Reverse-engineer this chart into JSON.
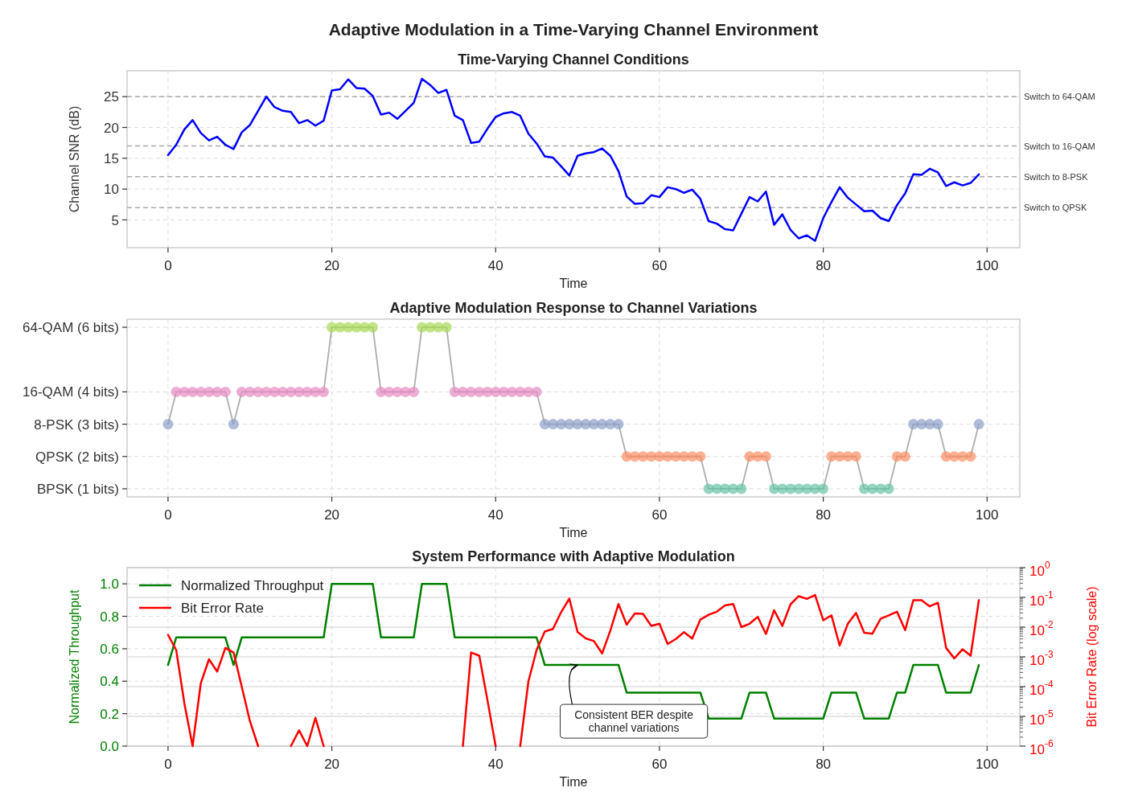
{
  "chart_data": [
    {
      "type": "line",
      "title": "Adaptive Modulation in a Time-Varying Channel Environment",
      "subtitle": "Time-Varying Channel Conditions",
      "xlabel": "Time",
      "ylabel": "Channel SNR (dB)",
      "xlim": [
        -5,
        104
      ],
      "ylim": [
        0.5,
        29.2
      ],
      "xticks": [
        0,
        20,
        40,
        60,
        80,
        100
      ],
      "yticks": [
        5,
        10,
        15,
        20,
        25
      ],
      "grid": true,
      "line_style": "solid",
      "x": [
        0,
        1,
        2,
        3,
        4,
        5,
        6,
        7,
        8,
        9,
        10,
        11,
        12,
        13,
        14,
        15,
        16,
        17,
        18,
        19,
        20,
        21,
        22,
        23,
        24,
        25,
        26,
        27,
        28,
        29,
        30,
        31,
        32,
        33,
        34,
        35,
        36,
        37,
        38,
        39,
        40,
        41,
        42,
        43,
        44,
        45,
        46,
        47,
        48,
        49,
        50,
        51,
        52,
        53,
        54,
        55,
        56,
        57,
        58,
        59,
        60,
        61,
        62,
        63,
        64,
        65,
        66,
        67,
        68,
        69,
        70,
        71,
        72,
        73,
        74,
        75,
        76,
        77,
        78,
        79,
        80,
        81,
        82,
        83,
        84,
        85,
        86,
        87,
        88,
        89,
        90,
        91,
        92,
        93,
        94,
        95,
        96,
        97,
        98,
        99
      ],
      "series": [
        {
          "color": "#0000ff",
          "values": [
            15.5,
            17.2,
            19.7,
            21.2,
            19.1,
            17.9,
            18.5,
            17.2,
            16.5,
            19.2,
            20.4,
            22.7,
            25.0,
            23.3,
            22.7,
            22.5,
            20.7,
            21.2,
            20.3,
            21.1,
            26.0,
            26.2,
            27.8,
            26.4,
            26.3,
            25.1,
            22.1,
            22.4,
            21.4,
            22.7,
            24.0,
            27.9,
            26.9,
            25.6,
            26.1,
            21.9,
            21.2,
            17.5,
            17.7,
            19.8,
            21.7,
            22.3,
            22.5,
            21.9,
            19.0,
            17.4,
            15.3,
            15.1,
            13.7,
            12.2,
            15.4,
            15.8,
            16.0,
            16.6,
            15.4,
            12.9,
            8.8,
            7.6,
            7.7,
            9.0,
            8.7,
            10.3,
            10.0,
            9.4,
            9.9,
            8.4,
            4.8,
            4.4,
            3.5,
            3.3,
            6.0,
            8.7,
            8.0,
            9.6,
            4.2,
            5.9,
            3.4,
            2.0,
            2.5,
            1.6,
            5.3,
            7.9,
            10.3,
            8.6,
            7.5,
            6.4,
            6.5,
            5.3,
            4.8,
            7.4,
            9.3,
            12.4,
            12.3,
            13.3,
            12.7,
            10.5,
            11.1,
            10.6,
            11.0,
            12.4
          ]
        }
      ],
      "ref_lines": [
        {
          "axis": "y",
          "value": 25,
          "label": "Switch to 64-QAM",
          "color": "#aaaaaa",
          "line_style": "dashed"
        },
        {
          "axis": "y",
          "value": 17,
          "label": "Switch to 16-QAM",
          "color": "#aaaaaa",
          "line_style": "dashed"
        },
        {
          "axis": "y",
          "value": 12,
          "label": "Switch to 8-PSK",
          "color": "#aaaaaa",
          "line_style": "dashed"
        },
        {
          "axis": "y",
          "value": 7,
          "label": "Switch to QPSK",
          "color": "#aaaaaa",
          "line_style": "dashed"
        }
      ]
    },
    {
      "type": "line",
      "title": "Adaptive Modulation Response to Channel Variations",
      "xlabel": "Time",
      "xlim": [
        -5,
        104
      ],
      "ylim": [
        0.75,
        6.25
      ],
      "xticks": [
        0,
        20,
        40,
        60,
        80,
        100
      ],
      "yticks": [
        {
          "value": 1,
          "label": "BPSK (1 bits)"
        },
        {
          "value": 2,
          "label": "QPSK (2 bits)"
        },
        {
          "value": 3,
          "label": "8-PSK (3 bits)"
        },
        {
          "value": 4,
          "label": "16-QAM (4 bits)"
        },
        {
          "value": 6,
          "label": "64-QAM (6 bits)"
        }
      ],
      "grid": true,
      "marker": "circle",
      "line_style": "solid",
      "x": [
        0,
        1,
        2,
        3,
        4,
        5,
        6,
        7,
        8,
        9,
        10,
        11,
        12,
        13,
        14,
        15,
        16,
        17,
        18,
        19,
        20,
        21,
        22,
        23,
        24,
        25,
        26,
        27,
        28,
        29,
        30,
        31,
        32,
        33,
        34,
        35,
        36,
        37,
        38,
        39,
        40,
        41,
        42,
        43,
        44,
        45,
        46,
        47,
        48,
        49,
        50,
        51,
        52,
        53,
        54,
        55,
        56,
        57,
        58,
        59,
        60,
        61,
        62,
        63,
        64,
        65,
        66,
        67,
        68,
        69,
        70,
        71,
        72,
        73,
        74,
        75,
        76,
        77,
        78,
        79,
        80,
        81,
        82,
        83,
        84,
        85,
        86,
        87,
        88,
        89,
        90,
        91,
        92,
        93,
        94,
        95,
        96,
        97,
        98,
        99
      ],
      "series": [
        {
          "color": "#999999",
          "values": [
            3,
            4,
            4,
            4,
            4,
            4,
            4,
            4,
            3,
            4,
            4,
            4,
            4,
            4,
            4,
            4,
            4,
            4,
            4,
            4,
            6,
            6,
            6,
            6,
            6,
            6,
            4,
            4,
            4,
            4,
            4,
            6,
            6,
            6,
            6,
            4,
            4,
            4,
            4,
            4,
            4,
            4,
            4,
            4,
            4,
            4,
            3,
            3,
            3,
            3,
            3,
            3,
            3,
            3,
            3,
            3,
            2,
            2,
            2,
            2,
            2,
            2,
            2,
            2,
            2,
            2,
            1,
            1,
            1,
            1,
            1,
            2,
            2,
            2,
            1,
            1,
            1,
            1,
            1,
            1,
            1,
            2,
            2,
            2,
            2,
            1,
            1,
            1,
            1,
            2,
            2,
            3,
            3,
            3,
            3,
            2,
            2,
            2,
            2,
            3
          ],
          "colors": [
            "#8da0cb",
            "#e78ac3",
            "#e78ac3",
            "#e78ac3",
            "#e78ac3",
            "#e78ac3",
            "#e78ac3",
            "#e78ac3",
            "#8da0cb",
            "#e78ac3",
            "#e78ac3",
            "#e78ac3",
            "#e78ac3",
            "#e78ac3",
            "#e78ac3",
            "#e78ac3",
            "#e78ac3",
            "#e78ac3",
            "#e78ac3",
            "#e78ac3",
            "#a6d854",
            "#a6d854",
            "#a6d854",
            "#a6d854",
            "#a6d854",
            "#a6d854",
            "#e78ac3",
            "#e78ac3",
            "#e78ac3",
            "#e78ac3",
            "#e78ac3",
            "#a6d854",
            "#a6d854",
            "#a6d854",
            "#a6d854",
            "#e78ac3",
            "#e78ac3",
            "#e78ac3",
            "#e78ac3",
            "#e78ac3",
            "#e78ac3",
            "#e78ac3",
            "#e78ac3",
            "#e78ac3",
            "#e78ac3",
            "#e78ac3",
            "#8da0cb",
            "#8da0cb",
            "#8da0cb",
            "#8da0cb",
            "#8da0cb",
            "#8da0cb",
            "#8da0cb",
            "#8da0cb",
            "#8da0cb",
            "#8da0cb",
            "#fc8d62",
            "#fc8d62",
            "#fc8d62",
            "#fc8d62",
            "#fc8d62",
            "#fc8d62",
            "#fc8d62",
            "#fc8d62",
            "#fc8d62",
            "#fc8d62",
            "#66c2a5",
            "#66c2a5",
            "#66c2a5",
            "#66c2a5",
            "#66c2a5",
            "#fc8d62",
            "#fc8d62",
            "#fc8d62",
            "#66c2a5",
            "#66c2a5",
            "#66c2a5",
            "#66c2a5",
            "#66c2a5",
            "#66c2a5",
            "#66c2a5",
            "#fc8d62",
            "#fc8d62",
            "#fc8d62",
            "#fc8d62",
            "#66c2a5",
            "#66c2a5",
            "#66c2a5",
            "#66c2a5",
            "#fc8d62",
            "#fc8d62",
            "#8da0cb",
            "#8da0cb",
            "#8da0cb",
            "#8da0cb",
            "#fc8d62",
            "#fc8d62",
            "#fc8d62",
            "#fc8d62",
            "#8da0cb"
          ]
        }
      ]
    },
    {
      "type": "line",
      "title": "System Performance with Adaptive Modulation",
      "xlabel": "Time",
      "ylabel": "Normalized Throughput",
      "y2label": "Bit Error Rate (log scale)",
      "xlim": [
        -5,
        104
      ],
      "ylim": [
        0,
        1.1
      ],
      "xticks": [
        0,
        20,
        40,
        60,
        80,
        100
      ],
      "yticks": [
        {
          "value": 0,
          "label": "0.0"
        },
        {
          "value": 0.2,
          "label": "0.2"
        },
        {
          "value": 0.4,
          "label": "0.4"
        },
        {
          "value": 0.6,
          "label": "0.6"
        },
        {
          "value": 0.8,
          "label": "0.8"
        },
        {
          "value": 1,
          "label": "1.0"
        }
      ],
      "y2lim": [
        1e-06,
        1
      ],
      "y2ticks": [
        {
          "value": 1e-06,
          "label": "10$^{-6}$"
        },
        {
          "value": 1e-05,
          "label": "10$^{-5}$"
        },
        {
          "value": 0.0001,
          "label": "10$^{-4}$"
        },
        {
          "value": 0.001,
          "label": "10$^{-3}$"
        },
        {
          "value": 0.01,
          "label": "10$^{-2}$"
        },
        {
          "value": 0.1,
          "label": "10$^{-1}$"
        },
        {
          "value": 1,
          "label": "10$^{0}$"
        }
      ],
      "log": "y2",
      "grid": true,
      "legend": "top left",
      "line_style": "solid",
      "x": [
        0,
        1,
        2,
        3,
        4,
        5,
        6,
        7,
        8,
        9,
        10,
        11,
        12,
        13,
        14,
        15,
        16,
        17,
        18,
        19,
        20,
        21,
        22,
        23,
        24,
        25,
        26,
        27,
        28,
        29,
        30,
        31,
        32,
        33,
        34,
        35,
        36,
        37,
        38,
        39,
        40,
        41,
        42,
        43,
        44,
        45,
        46,
        47,
        48,
        49,
        50,
        51,
        52,
        53,
        54,
        55,
        56,
        57,
        58,
        59,
        60,
        61,
        62,
        63,
        64,
        65,
        66,
        67,
        68,
        69,
        70,
        71,
        72,
        73,
        74,
        75,
        76,
        77,
        78,
        79,
        80,
        81,
        82,
        83,
        84,
        85,
        86,
        87,
        88,
        89,
        90,
        91,
        92,
        93,
        94,
        95,
        96,
        97,
        98,
        99
      ],
      "series": [
        {
          "name": "Normalized Throughput",
          "color": "#008000",
          "values": [
            0.5,
            0.67,
            0.67,
            0.67,
            0.67,
            0.67,
            0.67,
            0.67,
            0.5,
            0.67,
            0.67,
            0.67,
            0.67,
            0.67,
            0.67,
            0.67,
            0.67,
            0.67,
            0.67,
            0.67,
            1,
            1,
            1,
            1,
            1,
            1,
            0.67,
            0.67,
            0.67,
            0.67,
            0.67,
            1,
            1,
            1,
            1,
            0.67,
            0.67,
            0.67,
            0.67,
            0.67,
            0.67,
            0.67,
            0.67,
            0.67,
            0.67,
            0.67,
            0.5,
            0.5,
            0.5,
            0.5,
            0.5,
            0.5,
            0.5,
            0.5,
            0.5,
            0.5,
            0.33,
            0.33,
            0.33,
            0.33,
            0.33,
            0.33,
            0.33,
            0.33,
            0.33,
            0.33,
            0.17,
            0.17,
            0.17,
            0.17,
            0.17,
            0.33,
            0.33,
            0.33,
            0.17,
            0.17,
            0.17,
            0.17,
            0.17,
            0.17,
            0.17,
            0.33,
            0.33,
            0.33,
            0.33,
            0.17,
            0.17,
            0.17,
            0.17,
            0.33,
            0.33,
            0.5,
            0.5,
            0.5,
            0.5,
            0.33,
            0.33,
            0.33,
            0.33,
            0.5
          ]
        },
        {
          "name": "Bit Error Rate",
          "color": "#ff0000",
          "axis": "y2",
          "values": [
            0.0055,
            0.0017,
            2.7e-05,
            1e-06,
            0.00013,
            0.00083,
            0.00032,
            0.002,
            0.0014,
            0.0001,
            6.9e-06,
            1e-06,
            null,
            null,
            null,
            1e-06,
            3.4e-06,
            1e-06,
            8.9e-06,
            1e-06,
            null,
            null,
            null,
            null,
            null,
            null,
            null,
            null,
            null,
            null,
            null,
            null,
            null,
            null,
            null,
            null,
            1e-06,
            0.0014,
            0.0011,
            3.5e-05,
            1e-06,
            null,
            null,
            1e-06,
            0.00015,
            0.0017,
            0.0071,
            0.0087,
            0.032,
            0.091,
            0.0069,
            0.0042,
            0.0034,
            0.0013,
            0.0076,
            0.06,
            0.012,
            0.029,
            0.028,
            0.011,
            0.013,
            0.0027,
            0.004,
            0.0068,
            0.0041,
            0.018,
            0.026,
            0.033,
            0.054,
            0.06,
            0.01,
            0.013,
            0.022,
            0.0059,
            0.037,
            0.011,
            0.058,
            0.11,
            0.089,
            0.12,
            0.017,
            0.025,
            0.0024,
            0.013,
            0.03,
            0.0065,
            0.006,
            0.019,
            0.025,
            0.033,
            0.0079,
            0.081,
            0.081,
            0.05,
            0.066,
            0.002,
            0.00089,
            0.0018,
            0.0011,
            0.081
          ]
        }
      ],
      "annotations": [
        {
          "text": "Consistent BER despite\nchannel variations",
          "x": 50,
          "y": 0.5
        }
      ]
    }
  ]
}
